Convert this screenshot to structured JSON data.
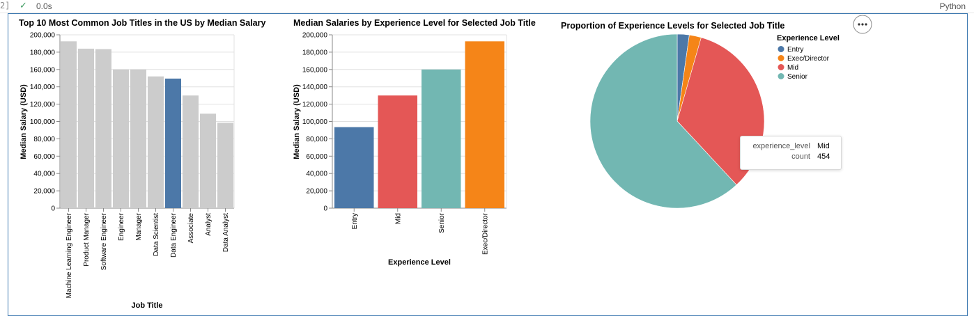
{
  "cell": {
    "bracket": "2]",
    "status_icon": "check-icon",
    "exec_time": "0.0s",
    "language": "Python"
  },
  "chart_data": [
    {
      "type": "bar",
      "title": "Top 10 Most Common Job Titles in the US by Median Salary",
      "xlabel": "Job Title",
      "ylabel": "Median Salary (USD)",
      "ylim": [
        0,
        200000
      ],
      "yticks": [
        0,
        20000,
        40000,
        60000,
        80000,
        100000,
        120000,
        140000,
        160000,
        180000,
        200000
      ],
      "ytick_labels": [
        "0",
        "20,000",
        "40,000",
        "60,000",
        "80,000",
        "100,000",
        "120,000",
        "140,000",
        "160,000",
        "180,000",
        "200,000"
      ],
      "categories": [
        "Machine Learning Engineer",
        "Product Manager",
        "Software Engineer",
        "Engineer",
        "Manager",
        "Data Scientist",
        "Data Engineer",
        "Associate",
        "Analyst",
        "Data Analyst"
      ],
      "values": [
        192500,
        184000,
        183500,
        160000,
        160000,
        152000,
        149500,
        130000,
        109000,
        98500
      ],
      "highlighted": "Data Engineer",
      "colors": {
        "default": "#cccccc",
        "highlight": "#4c78a8"
      }
    },
    {
      "type": "bar",
      "title": "Median Salaries by Experience Level for Selected Job Title",
      "xlabel": "Experience Level",
      "ylabel": "Median Salary (USD)",
      "ylim": [
        0,
        200000
      ],
      "yticks": [
        0,
        20000,
        40000,
        60000,
        80000,
        100000,
        120000,
        140000,
        160000,
        180000,
        200000
      ],
      "ytick_labels": [
        "0",
        "20,000",
        "40,000",
        "60,000",
        "80,000",
        "100,000",
        "120,000",
        "140,000",
        "160,000",
        "180,000",
        "200,000"
      ],
      "categories": [
        "Entry",
        "Mid",
        "Senior",
        "Exec/Director"
      ],
      "values": [
        93500,
        130000,
        160000,
        192500
      ],
      "colors": [
        "#4c78a8",
        "#e45756",
        "#72b7b2",
        "#f58518"
      ]
    },
    {
      "type": "pie",
      "title": "Proportion of Experience Levels for Selected Job Title",
      "legend_title": "Experience Level",
      "legend_position": "top-right",
      "categories": [
        "Entry",
        "Exec/Director",
        "Mid",
        "Senior"
      ],
      "values": [
        30,
        30,
        454,
        836
      ],
      "colors": [
        "#4c78a8",
        "#f58518",
        "#e45756",
        "#72b7b2"
      ],
      "tooltip": {
        "rows": [
          {
            "key": "experience_level",
            "value": "Mid"
          },
          {
            "key": "count",
            "value": "454"
          }
        ]
      },
      "menu_icon": "ellipsis-icon"
    }
  ]
}
